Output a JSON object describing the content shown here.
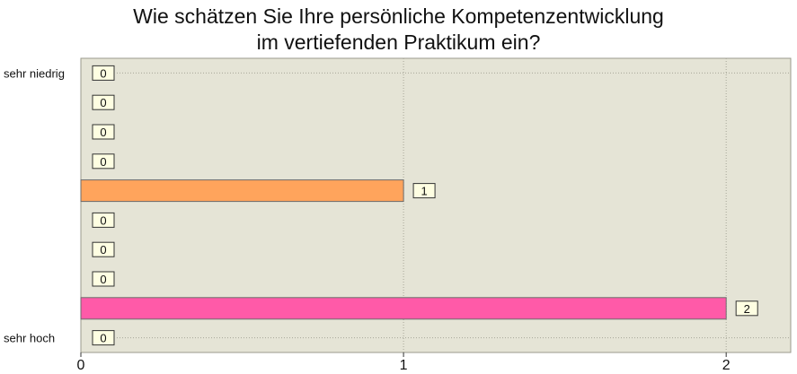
{
  "chart_data": {
    "type": "bar",
    "orientation": "horizontal",
    "title_lines": [
      "Wie schätzen Sie Ihre persönliche Kompetenzentwicklung",
      "im vertiefenden Praktikum ein?"
    ],
    "categories": [
      "sehr niedrig",
      "",
      "",
      "",
      "",
      "",
      "",
      "",
      "",
      "sehr hoch"
    ],
    "values": [
      0,
      0,
      0,
      0,
      1,
      0,
      0,
      0,
      2,
      0
    ],
    "bar_colors": [
      "#ffa45c",
      "#ffa45c",
      "#ffa45c",
      "#ffa45c",
      "#ffa45c",
      "#ff5aa8",
      "#ff5aa8",
      "#ff5aa8",
      "#ff5aa8",
      "#ff5aa8"
    ],
    "x_ticks": [
      0,
      1,
      2
    ],
    "xlim": [
      0,
      2.2
    ],
    "grid": true,
    "plot_background": "#e5e4d6",
    "label_box_color": "#fefee2"
  }
}
